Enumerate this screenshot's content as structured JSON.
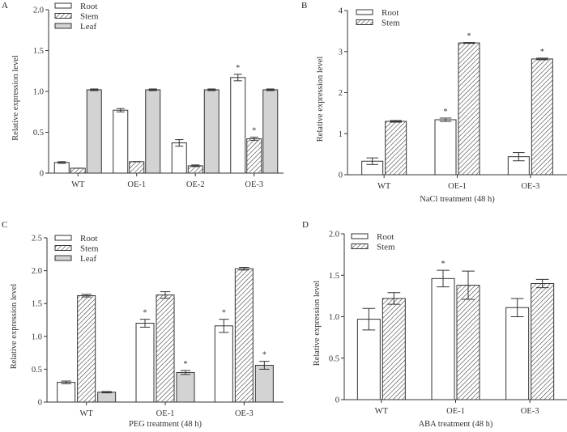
{
  "chart_data": [
    {
      "panel": "A",
      "type": "bar",
      "title": "",
      "xlabel": "",
      "ylabel": "Relative expression level",
      "ylim": [
        0,
        2.0
      ],
      "yticks": [
        0,
        0.5,
        1.0,
        1.5,
        2.0
      ],
      "ytick_labels": [
        "0",
        "0.5",
        "1.0",
        "1.5",
        "2.0"
      ],
      "categories": [
        "WT",
        "OE-1",
        "OE-2",
        "OE-3"
      ],
      "legend": "top-left",
      "grid": false,
      "series": [
        {
          "name": "Root",
          "style": "white",
          "values": [
            0.13,
            0.77,
            0.37,
            1.17
          ],
          "errors": [
            0.01,
            0.02,
            0.04,
            0.04
          ],
          "significant": [
            false,
            false,
            false,
            true
          ]
        },
        {
          "name": "Stem",
          "style": "hatched",
          "values": [
            0.06,
            0.14,
            0.09,
            0.42
          ],
          "errors": [
            0.0,
            0.0,
            0.01,
            0.02
          ],
          "significant": [
            false,
            false,
            false,
            true
          ]
        },
        {
          "name": "Leaf",
          "style": "gray",
          "values": [
            1.02,
            1.02,
            1.02,
            1.02
          ],
          "errors": [
            0.01,
            0.01,
            0.01,
            0.01
          ],
          "significant": [
            false,
            false,
            false,
            false
          ]
        }
      ]
    },
    {
      "panel": "B",
      "type": "bar",
      "title": "",
      "xlabel": "NaCl treatment (48 h)",
      "ylabel": "Relative expression level",
      "ylim": [
        0,
        4
      ],
      "yticks": [
        0,
        1,
        2,
        3,
        4
      ],
      "ytick_labels": [
        "0",
        "1",
        "2",
        "3",
        "4"
      ],
      "categories": [
        "WT",
        "OE-1",
        "OE-3"
      ],
      "legend": "top-left",
      "grid": false,
      "series": [
        {
          "name": "Root",
          "style": "white",
          "values": [
            0.33,
            1.34,
            0.44
          ],
          "errors": [
            0.08,
            0.04,
            0.1
          ],
          "significant": [
            false,
            true,
            false
          ]
        },
        {
          "name": "Stem",
          "style": "hatched",
          "values": [
            1.3,
            3.21,
            2.82
          ],
          "errors": [
            0.02,
            0.01,
            0.02
          ],
          "significant": [
            false,
            true,
            true
          ]
        }
      ]
    },
    {
      "panel": "C",
      "type": "bar",
      "title": "",
      "xlabel": "PEG treatment (48 h)",
      "ylabel": "Relative expression level",
      "ylim": [
        0,
        2.5
      ],
      "yticks": [
        0,
        0.5,
        1.0,
        1.5,
        2.0,
        2.5
      ],
      "ytick_labels": [
        "0",
        "0.5",
        "1.0",
        "1.5",
        "2.0",
        "2.5"
      ],
      "categories": [
        "WT",
        "OE-1",
        "OE-3"
      ],
      "legend": "top-left",
      "grid": false,
      "series": [
        {
          "name": "Root",
          "style": "white",
          "values": [
            0.3,
            1.2,
            1.16
          ],
          "errors": [
            0.02,
            0.06,
            0.1
          ],
          "significant": [
            false,
            true,
            true
          ]
        },
        {
          "name": "Stem",
          "style": "hatched",
          "values": [
            1.62,
            1.63,
            2.03
          ],
          "errors": [
            0.02,
            0.05,
            0.02
          ],
          "significant": [
            false,
            false,
            false
          ]
        },
        {
          "name": "Leaf",
          "style": "gray",
          "values": [
            0.15,
            0.45,
            0.56
          ],
          "errors": [
            0.01,
            0.03,
            0.06
          ],
          "significant": [
            false,
            true,
            true
          ]
        }
      ]
    },
    {
      "panel": "D",
      "type": "bar",
      "title": "",
      "xlabel": "ABA treatment (48 h)",
      "ylabel": "Relative expression level",
      "ylim": [
        0,
        2.0
      ],
      "yticks": [
        0,
        0.5,
        1.0,
        1.5,
        2.0
      ],
      "ytick_labels": [
        "0",
        "0.5",
        "1.0",
        "1.5",
        "2.0"
      ],
      "categories": [
        "WT",
        "OE-1",
        "OE-3"
      ],
      "legend": "top-left",
      "grid": false,
      "series": [
        {
          "name": "Root",
          "style": "white",
          "values": [
            0.97,
            1.46,
            1.11
          ],
          "errors": [
            0.13,
            0.1,
            0.11
          ],
          "significant": [
            false,
            true,
            false
          ]
        },
        {
          "name": "Stem",
          "style": "hatched",
          "values": [
            1.22,
            1.38,
            1.4
          ],
          "errors": [
            0.07,
            0.17,
            0.05
          ],
          "significant": [
            false,
            false,
            false
          ]
        }
      ]
    }
  ],
  "significance_marker": "*",
  "colors": {
    "axis": "#333333",
    "bar_outline": "#333333",
    "white_fill": "#ffffff",
    "gray_fill": "#d3d3d3",
    "hatch": "#333333"
  }
}
